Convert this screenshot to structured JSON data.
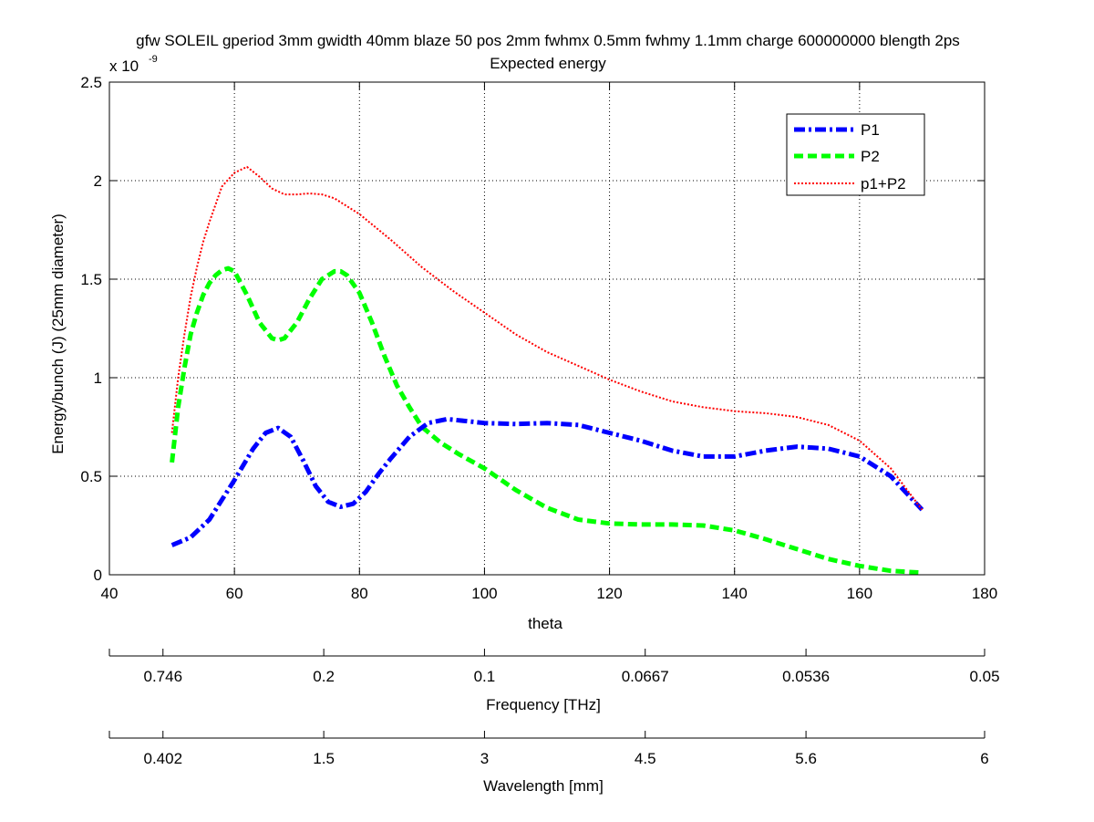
{
  "chart_data": {
    "type": "line",
    "title": "gfw SOLEIL gperiod 3mm gwidth 40mm blaze 50 pos 2mm fwhmx 0.5mm fwhmy 1.1mm charge 600000000 blength 2ps",
    "subtitle": "Expected energy",
    "xlabel": "theta",
    "ylabel": "Energy/bunch (J) (25mm diameter)",
    "y_exponent_label": "x 10",
    "y_exponent_power": "-9",
    "xlim": [
      40,
      180
    ],
    "ylim": [
      0,
      2.5e-09
    ],
    "x_ticks": [
      40,
      60,
      80,
      100,
      120,
      140,
      160,
      180
    ],
    "x_tick_labels": [
      "40",
      "60",
      "80",
      "100",
      "120",
      "140",
      "160",
      "180"
    ],
    "y_ticks": [
      0,
      5e-10,
      1e-09,
      1.5e-09,
      2e-09,
      2.5e-09
    ],
    "y_tick_labels": [
      "0",
      "0.5",
      "1",
      "1.5",
      "2",
      "2.5"
    ],
    "grid": true,
    "legend_position": "top-right",
    "series": [
      {
        "name": "P1",
        "color": "#0000ff",
        "style": "dash-dot",
        "x": [
          50,
          53,
          56,
          60,
          63,
          65,
          67,
          69,
          71,
          73,
          75,
          77,
          79,
          81,
          83,
          85,
          88,
          91,
          94,
          97,
          100,
          105,
          110,
          115,
          120,
          125,
          130,
          135,
          140,
          145,
          150,
          155,
          160,
          165,
          170
        ],
        "y": [
          1.5e-10,
          1.9e-10,
          2.8e-10,
          4.8e-10,
          6.4e-10,
          7.2e-10,
          7.45e-10,
          7e-10,
          5.8e-10,
          4.5e-10,
          3.7e-10,
          3.45e-10,
          3.6e-10,
          4.2e-10,
          5.1e-10,
          5.9e-10,
          7e-10,
          7.7e-10,
          7.9e-10,
          7.8e-10,
          7.7e-10,
          7.65e-10,
          7.7e-10,
          7.6e-10,
          7.2e-10,
          6.8e-10,
          6.3e-10,
          6e-10,
          6e-10,
          6.3e-10,
          6.5e-10,
          6.4e-10,
          6e-10,
          5e-10,
          3.3e-10
        ]
      },
      {
        "name": "P2",
        "color": "#00ff00",
        "style": "dashed",
        "x": [
          50,
          51,
          52,
          53,
          54,
          55,
          56,
          57,
          58,
          59,
          60,
          62,
          64,
          66,
          67,
          68,
          70,
          72,
          74,
          76,
          77,
          78,
          80,
          82,
          84,
          86,
          88,
          90,
          93,
          96,
          100,
          105,
          110,
          115,
          120,
          125,
          130,
          135,
          140,
          145,
          150,
          155,
          160,
          165,
          170
        ],
        "y": [
          5.7e-10,
          8.5e-10,
          1.05e-09,
          1.22e-09,
          1.33e-09,
          1.42e-09,
          1.48e-09,
          1.52e-09,
          1.545e-09,
          1.555e-09,
          1.54e-09,
          1.42e-09,
          1.28e-09,
          1.2e-09,
          1.19e-09,
          1.2e-09,
          1.28e-09,
          1.4e-09,
          1.5e-09,
          1.54e-09,
          1.54e-09,
          1.52e-09,
          1.43e-09,
          1.28e-09,
          1.11e-09,
          9.6e-10,
          8.5e-10,
          7.5e-10,
          6.7e-10,
          6.1e-10,
          5.4e-10,
          4.3e-10,
          3.4e-10,
          2.8e-10,
          2.6e-10,
          2.55e-10,
          2.55e-10,
          2.5e-10,
          2.25e-10,
          1.8e-10,
          1.3e-10,
          8e-11,
          4.5e-11,
          2e-11,
          1e-11
        ]
      },
      {
        "name": "p1+P2",
        "color": "#ff0000",
        "style": "dotted",
        "x": [
          50,
          51,
          52,
          53,
          54,
          55,
          56,
          58,
          60,
          62,
          64,
          66,
          68,
          70,
          72,
          74,
          76,
          78,
          80,
          85,
          90,
          95,
          100,
          105,
          110,
          115,
          120,
          125,
          130,
          135,
          140,
          145,
          150,
          155,
          160,
          165,
          170
        ],
        "y": [
          7.2e-10,
          1e-09,
          1.22e-09,
          1.41e-09,
          1.56e-09,
          1.69e-09,
          1.79e-09,
          1.97e-09,
          2.04e-09,
          2.07e-09,
          2.02e-09,
          1.96e-09,
          1.93e-09,
          1.93e-09,
          1.935e-09,
          1.93e-09,
          1.91e-09,
          1.87e-09,
          1.83e-09,
          1.7e-09,
          1.56e-09,
          1.44e-09,
          1.33e-09,
          1.22e-09,
          1.13e-09,
          1.06e-09,
          9.9e-10,
          9.3e-10,
          8.8e-10,
          8.5e-10,
          8.3e-10,
          8.2e-10,
          8e-10,
          7.6e-10,
          6.8e-10,
          5.4e-10,
          3.3e-10
        ]
      }
    ],
    "secondary_axes": [
      {
        "label": "Frequency [THz]",
        "tick_positions_theta": [
          40,
          48.57,
          74.29,
          100,
          125.71,
          151.43,
          180
        ],
        "tick_labels": [
          "",
          "0.746",
          "0.2",
          "0.1",
          "0.0667",
          "0.0536",
          "0.05"
        ]
      },
      {
        "label": "Wavelength [mm]",
        "tick_positions_theta": [
          40,
          48.57,
          74.29,
          100,
          125.71,
          151.43,
          180
        ],
        "tick_labels": [
          "",
          "0.402",
          "1.5",
          "3",
          "4.5",
          "5.6",
          "6"
        ]
      }
    ]
  }
}
